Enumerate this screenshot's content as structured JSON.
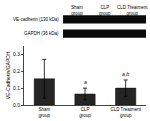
{
  "chart_data": {
    "type": "bar",
    "categories": [
      "Sham group",
      "CLP group",
      "CLD Treatment group"
    ],
    "values": [
      0.155,
      0.065,
      0.1
    ],
    "errors": [
      0.115,
      0.035,
      0.048
    ],
    "color": "#252525",
    "ylabel": "VE-Cadherin/GAPDH",
    "ylim": [
      0,
      0.35
    ],
    "yticks": [
      {
        "value": 0,
        "label": "0.0"
      },
      0.1,
      0.2,
      0.3
    ],
    "grid": false,
    "annotations": [
      {
        "category": "CLP group",
        "text": "a"
      },
      {
        "category": "CLD Treatment group",
        "text": "a,b"
      }
    ],
    "bands": {
      "labels": [
        "VE-cadherin (130 kDa)",
        "GAPDH (36 kDa)"
      ],
      "columns": [
        "Sham group",
        "CLP group",
        "CLD Treatment group"
      ],
      "color": "#0a0a0a"
    }
  }
}
